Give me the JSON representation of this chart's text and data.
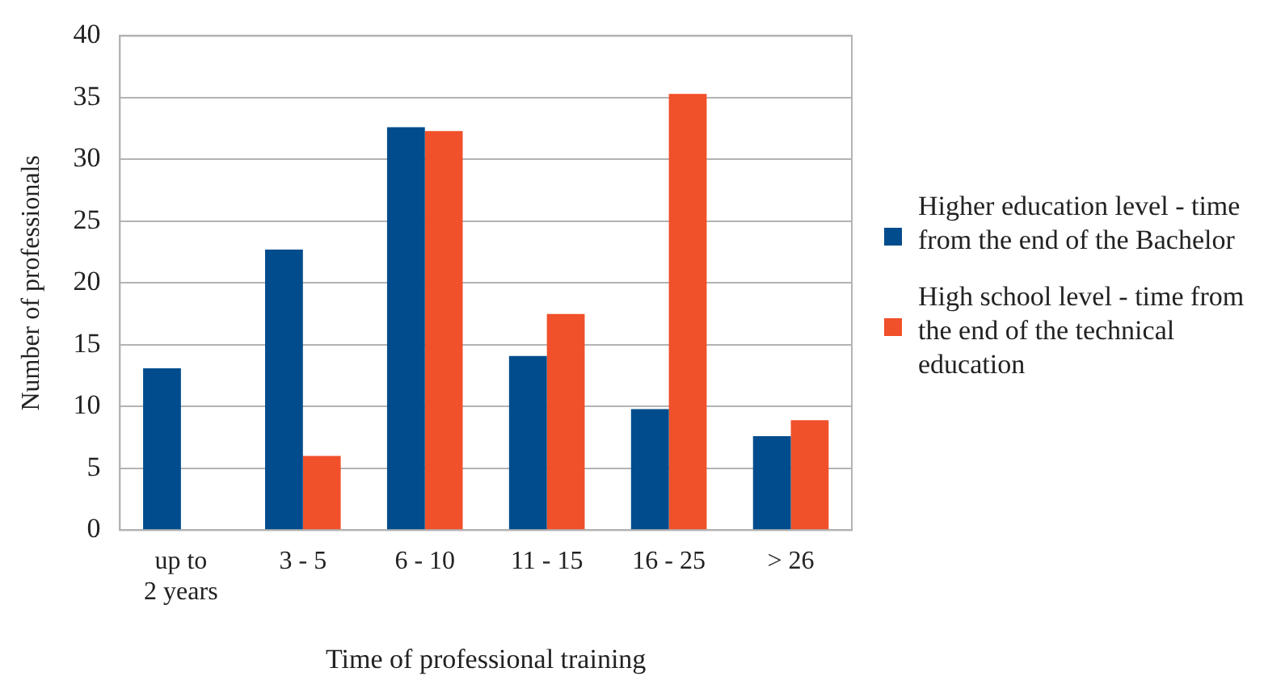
{
  "chart_data": {
    "type": "bar",
    "xlabel": "Time of professional training",
    "ylabel": "Number of professionals",
    "categories": [
      "up to 2 years",
      "3 - 5",
      "6 - 10",
      "11 - 15",
      "16 - 25",
      "> 26"
    ],
    "series": [
      {
        "name": "Higher education level - time from the end of the Bachelor",
        "color": "#004c8c",
        "values": [
          13.1,
          22.7,
          32.6,
          14.1,
          9.8,
          7.6
        ]
      },
      {
        "name": "High school level - time from the end of the technical education",
        "color": "#f0502a",
        "values": [
          null,
          6.0,
          32.3,
          17.5,
          35.3,
          8.9
        ]
      }
    ],
    "ylim": [
      0,
      40
    ],
    "yticks": [
      0,
      5,
      10,
      15,
      20,
      25,
      30,
      35,
      40
    ],
    "grid": "y",
    "legend": "right"
  }
}
